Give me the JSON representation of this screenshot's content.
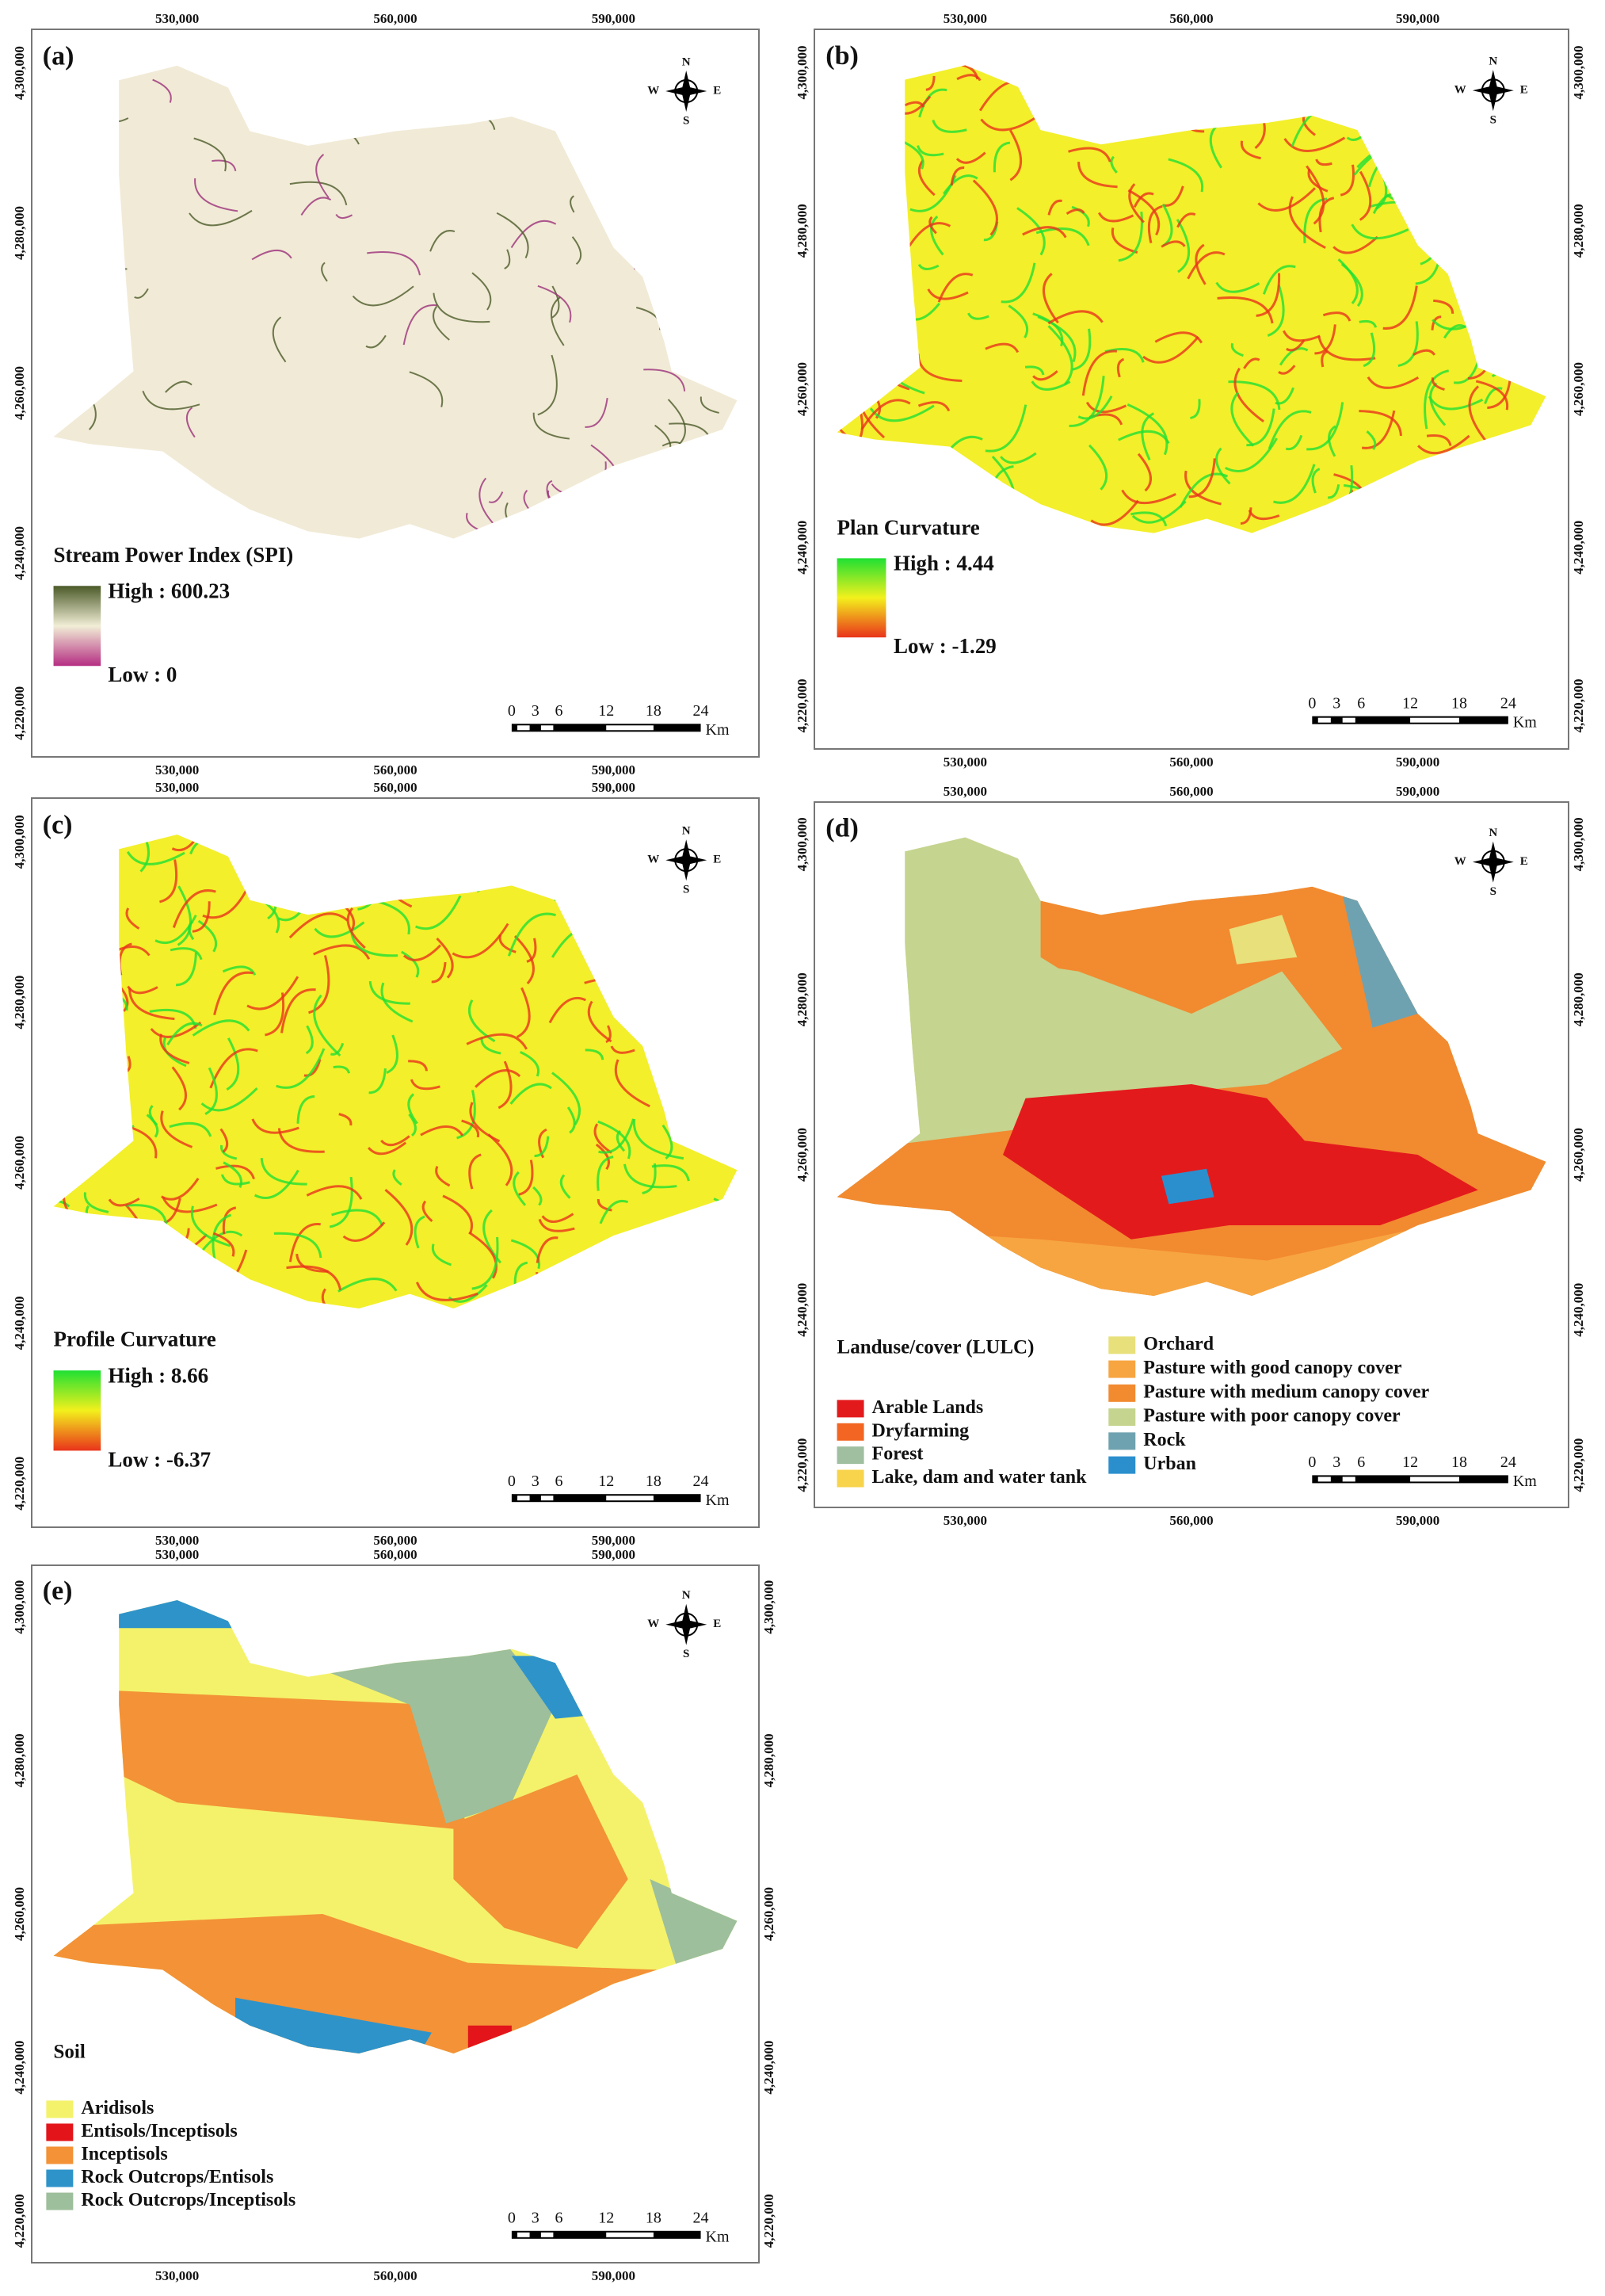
{
  "panels": [
    {
      "label": "(a)",
      "x_coords": [
        "530,000",
        "560,000",
        "590,000"
      ],
      "y_coords": [
        "4,300,000",
        "4,280,000",
        "4,260,000",
        "4,240,000",
        "4,220,000"
      ],
      "compass": [
        "N",
        "W",
        "E",
        "S"
      ],
      "scale": [
        "0",
        "3",
        "6",
        "12",
        "18",
        "24",
        "Km"
      ],
      "legend": {
        "title": "Stream Power Index (SPI)",
        "high": "High : 600.23",
        "low": "Low : 0",
        "ramp": [
          "#4b5a28",
          "#f1eed6",
          "#b52d82"
        ]
      }
    },
    {
      "label": "(b)",
      "x_coords": [
        "530,000",
        "560,000",
        "590,000"
      ],
      "y_coords": [
        "4,300,000",
        "4,280,000",
        "4,260,000",
        "4,240,000",
        "4,220,000"
      ],
      "compass": [
        "N",
        "W",
        "E",
        "S"
      ],
      "scale": [
        "0",
        "3",
        "6",
        "12",
        "18",
        "24",
        "Km"
      ],
      "legend": {
        "title": "Plan Curvature",
        "high": "High : 4.44",
        "low": "Low : -1.29",
        "ramp": [
          "#1fe033",
          "#f3f01c",
          "#e9331b"
        ]
      }
    },
    {
      "label": "(c)",
      "x_coords": [
        "530,000",
        "560,000",
        "590,000"
      ],
      "y_coords": [
        "4,300,000",
        "4,280,000",
        "4,260,000",
        "4,240,000",
        "4,220,000"
      ],
      "compass": [
        "N",
        "W",
        "E",
        "S"
      ],
      "scale": [
        "0",
        "3",
        "6",
        "12",
        "18",
        "24",
        "Km"
      ],
      "legend": {
        "title": "Profile Curvature",
        "high": "High : 8.66",
        "low": "Low : -6.37",
        "ramp": [
          "#1fe033",
          "#f3f01c",
          "#e9331b"
        ]
      }
    },
    {
      "label": "(d)",
      "x_coords": [
        "530,000",
        "560,000",
        "590,000"
      ],
      "y_coords": [
        "4,300,000",
        "4,280,000",
        "4,260,000",
        "4,240,000",
        "4,220,000"
      ],
      "compass": [
        "N",
        "W",
        "E",
        "S"
      ],
      "scale": [
        "0",
        "3",
        "6",
        "12",
        "18",
        "24",
        "Km"
      ],
      "legend": {
        "title": "Landuse/cover (LULC)",
        "items": [
          {
            "name": "Arable Lands",
            "color": "#e31a1c"
          },
          {
            "name": "Dryfarming",
            "color": "#f26522"
          },
          {
            "name": "Forest",
            "color": "#9fbfa0"
          },
          {
            "name": "Lake, dam and water tank",
            "color": "#f7d44c"
          },
          {
            "name": "Orchard",
            "color": "#e8e07a"
          },
          {
            "name": "Pasture with good canopy cover",
            "color": "#f7a541"
          },
          {
            "name": "Pasture with medium canopy cover",
            "color": "#f28a30"
          },
          {
            "name": "Pasture with poor canopy cover",
            "color": "#c5d48e"
          },
          {
            "name": "Rock",
            "color": "#6fa2b0"
          },
          {
            "name": "Urban",
            "color": "#2b8fce"
          }
        ]
      }
    },
    {
      "label": "(e)",
      "x_coords": [
        "530,000",
        "560,000",
        "590,000"
      ],
      "y_coords": [
        "4,300,000",
        "4,280,000",
        "4,260,000",
        "4,240,000",
        "4,220,000"
      ],
      "compass": [
        "N",
        "W",
        "E",
        "S"
      ],
      "scale": [
        "0",
        "3",
        "6",
        "12",
        "18",
        "24",
        "Km"
      ],
      "legend": {
        "title": "Soil",
        "items": [
          {
            "name": "Aridisols",
            "color": "#f4f26a"
          },
          {
            "name": "Entisols/Inceptisols",
            "color": "#e3151b"
          },
          {
            "name": "Inceptisols",
            "color": "#f39237"
          },
          {
            "name": "Rock Outcrops/Entisols",
            "color": "#2e93c9"
          },
          {
            "name": "Rock Outcrops/Inceptisols",
            "color": "#9dbf9b"
          }
        ]
      }
    }
  ]
}
